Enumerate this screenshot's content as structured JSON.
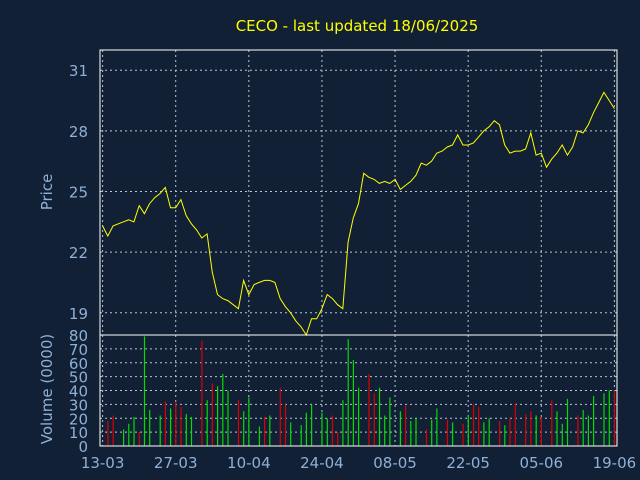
{
  "chart_data": [
    {
      "type": "line",
      "title": "CECO - last updated 18/06/2025",
      "ylabel": "Price",
      "ylim": [
        17.9,
        32.0
      ],
      "yticks": [
        19,
        22,
        25,
        28,
        31
      ],
      "xticks": [
        {
          "label": "13-03",
          "day": 0
        },
        {
          "label": "27-03",
          "day": 14
        },
        {
          "label": "10-04",
          "day": 28
        },
        {
          "label": "24-04",
          "day": 42
        },
        {
          "label": "08-05",
          "day": 56
        },
        {
          "label": "22-05",
          "day": 70
        },
        {
          "label": "05-06",
          "day": 84
        },
        {
          "label": "19-06",
          "day": 98
        }
      ],
      "xlim": [
        -0.5,
        98.5
      ],
      "grid": true,
      "line_color": "#ffff00",
      "series": [
        {
          "x": [
            0,
            1,
            2,
            3,
            4,
            5,
            6,
            7,
            8,
            9,
            10,
            11,
            12,
            13,
            14,
            15,
            16,
            17,
            18,
            19,
            20,
            21,
            22,
            23,
            24,
            25,
            26,
            27,
            28,
            29,
            30,
            31,
            32,
            33,
            34,
            35,
            36,
            37,
            38,
            39,
            40,
            41,
            42,
            43,
            44,
            45,
            46,
            47,
            48,
            49,
            50,
            51,
            52,
            53,
            54,
            55,
            56,
            57,
            58,
            59,
            60,
            61,
            62,
            63,
            64,
            65,
            66,
            67,
            68,
            69,
            70,
            71,
            72,
            73,
            74,
            75,
            76,
            77,
            78,
            79,
            80,
            81,
            82,
            83,
            84,
            85,
            86,
            87,
            88,
            89,
            90,
            91,
            92,
            93,
            94,
            95,
            96,
            97,
            98
          ],
          "values": [
            23.3,
            22.8,
            23.3,
            23.4,
            23.5,
            23.6,
            23.5,
            24.3,
            23.9,
            24.4,
            24.7,
            24.9,
            25.2,
            24.2,
            24.2,
            24.6,
            23.8,
            23.4,
            23.1,
            22.7,
            22.9,
            21.0,
            19.9,
            19.7,
            19.6,
            19.4,
            19.2,
            20.6,
            19.9,
            20.4,
            20.5,
            20.6,
            20.6,
            20.5,
            19.7,
            19.3,
            19.0,
            18.6,
            18.3,
            17.9,
            18.7,
            18.7,
            19.2,
            19.9,
            19.7,
            19.4,
            19.2,
            22.5,
            23.7,
            24.4,
            25.9,
            25.7,
            25.6,
            25.4,
            25.5,
            25.4,
            25.6,
            25.1,
            25.3,
            25.5,
            25.8,
            26.4,
            26.3,
            26.5,
            26.9,
            27.0,
            27.2,
            27.3,
            27.8,
            27.3,
            27.3,
            27.4,
            27.7,
            28.0,
            28.2,
            28.5,
            28.3,
            27.3,
            26.9,
            27.0,
            27.0,
            27.1,
            27.9,
            26.8,
            26.9,
            26.2,
            26.6,
            26.9,
            27.3,
            26.8,
            27.2,
            28.0,
            27.9,
            28.3,
            28.9,
            29.4,
            29.9,
            29.5,
            29.1
          ]
        }
      ]
    },
    {
      "type": "bar",
      "ylabel": "Volume (0000)",
      "ylim": [
        0,
        80
      ],
      "yticks": [
        0,
        10,
        20,
        30,
        40,
        50,
        60,
        70,
        80
      ],
      "grid": true,
      "up_color": "#00dd00",
      "down_color": "#dd0000",
      "series": [
        {
          "x": [
            1,
            2,
            4,
            5,
            6,
            7,
            8,
            9,
            11,
            12,
            13,
            14,
            15,
            16,
            17,
            19,
            20,
            21,
            22,
            23,
            24,
            26,
            27,
            28,
            30,
            31,
            32,
            34,
            35,
            36,
            38,
            39,
            40,
            42,
            43,
            44,
            45,
            46,
            47,
            48,
            49,
            51,
            52,
            53,
            54,
            55,
            57,
            58,
            59,
            60,
            62,
            63,
            64,
            66,
            67,
            69,
            70,
            71,
            72,
            73,
            74,
            76,
            77,
            78,
            79,
            81,
            82,
            83,
            84,
            86,
            87,
            88,
            89,
            91,
            92,
            93,
            94,
            96,
            97,
            98
          ],
          "values": [
            18,
            22,
            12,
            16,
            21,
            10,
            79,
            26,
            22,
            32,
            27,
            32,
            28,
            23,
            21,
            76,
            33,
            45,
            43,
            52,
            40,
            33,
            25,
            35,
            14,
            21,
            22,
            42,
            30,
            17,
            15,
            24,
            30,
            24,
            20,
            22,
            10,
            33,
            77,
            62,
            42,
            52,
            38,
            42,
            22,
            35,
            25,
            29,
            18,
            20,
            12,
            19,
            27,
            19,
            17,
            16,
            22,
            30,
            28,
            17,
            20,
            18,
            15,
            20,
            31,
            23,
            25,
            22,
            21,
            33,
            25,
            16,
            34,
            22,
            26,
            22,
            36,
            38,
            40,
            40
          ],
          "colors": [
            "down",
            "down",
            "up",
            "up",
            "up",
            "down",
            "up",
            "up",
            "up",
            "down",
            "up",
            "down",
            "down",
            "up",
            "up",
            "down",
            "up",
            "down",
            "up",
            "up",
            "up",
            "down",
            "up",
            "up",
            "up",
            "down",
            "up",
            "down",
            "down",
            "up",
            "up",
            "up",
            "up",
            "up",
            "up",
            "down",
            "down",
            "up",
            "up",
            "up",
            "up",
            "down",
            "down",
            "up",
            "up",
            "up",
            "up",
            "down",
            "up",
            "up",
            "down",
            "up",
            "up",
            "down",
            "up",
            "down",
            "up",
            "down",
            "down",
            "up",
            "up",
            "down",
            "up",
            "down",
            "down",
            "down",
            "down",
            "up",
            "down",
            "down",
            "up",
            "up",
            "up",
            "down",
            "up",
            "up",
            "up",
            "up",
            "up",
            "down"
          ]
        }
      ]
    }
  ]
}
